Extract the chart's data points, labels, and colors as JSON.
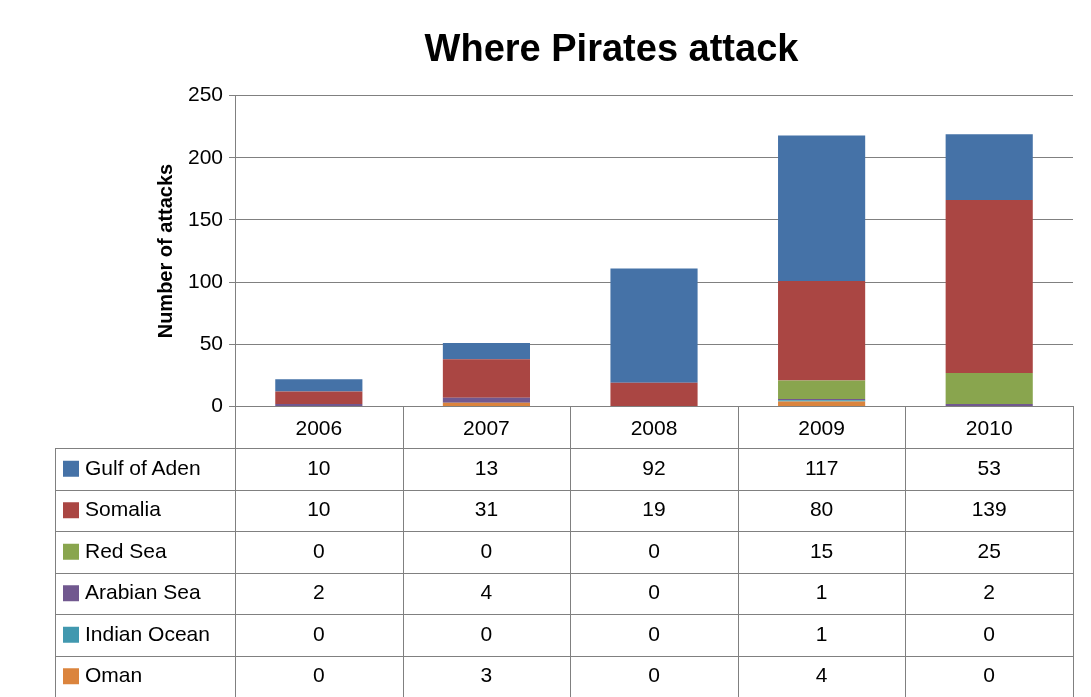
{
  "chart_data": {
    "type": "bar",
    "title": "Where Pirates attack",
    "ylabel": "Number of attacks",
    "categories": [
      "2006",
      "2007",
      "2008",
      "2009",
      "2010"
    ],
    "stacked": true,
    "ylim": [
      0,
      250
    ],
    "yticks": [
      0,
      50,
      100,
      150,
      200,
      250
    ],
    "grid": "y",
    "legend": "bottom",
    "data_labels": true,
    "series": [
      {
        "name": "Oman",
        "color": "#db843d",
        "values": [
          0,
          3,
          0,
          4,
          0
        ]
      },
      {
        "name": "Indian Ocean",
        "color": "#4198af",
        "values": [
          0,
          0,
          0,
          1,
          0
        ]
      },
      {
        "name": "Arabian Sea",
        "color": "#71588f",
        "values": [
          2,
          4,
          0,
          1,
          2
        ]
      },
      {
        "name": "Red Sea",
        "color": "#89a54e",
        "values": [
          0,
          0,
          0,
          15,
          25
        ]
      },
      {
        "name": "Somalia",
        "color": "#aa4643",
        "values": [
          10,
          31,
          19,
          80,
          139
        ]
      },
      {
        "name": "Gulf of Aden",
        "color": "#4572a7",
        "values": [
          10,
          13,
          92,
          117,
          53
        ]
      }
    ]
  }
}
